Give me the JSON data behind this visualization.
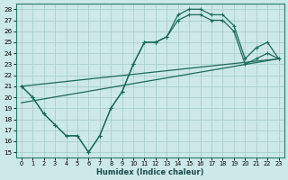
{
  "xlabel": "Humidex (Indice chaleur)",
  "bg_color": "#cce8e8",
  "grid_color": "#aacece",
  "line_color": "#1a6b5a",
  "xlim": [
    -0.5,
    23.5
  ],
  "ylim": [
    14.5,
    28.5
  ],
  "xticks": [
    0,
    1,
    2,
    3,
    4,
    5,
    6,
    7,
    8,
    9,
    10,
    11,
    12,
    13,
    14,
    15,
    16,
    17,
    18,
    19,
    20,
    21,
    22,
    23
  ],
  "yticks": [
    15,
    16,
    17,
    18,
    19,
    20,
    21,
    22,
    23,
    24,
    25,
    26,
    27,
    28
  ],
  "curve1_x": [
    0,
    1,
    2,
    3,
    4,
    5,
    6,
    7,
    8,
    9,
    10,
    11,
    12,
    13,
    14,
    15,
    16,
    17,
    18,
    19,
    20,
    21,
    22,
    23
  ],
  "curve1_y": [
    21.0,
    20.0,
    18.5,
    17.5,
    16.5,
    16.5,
    15.0,
    16.5,
    19.0,
    20.5,
    23.0,
    25.0,
    25.0,
    25.5,
    27.5,
    28.0,
    28.0,
    27.5,
    27.5,
    26.5,
    23.5,
    24.5,
    25.0,
    23.5
  ],
  "curve2_x": [
    0,
    1,
    2,
    3,
    4,
    5,
    6,
    7,
    8,
    9,
    10,
    11,
    12,
    13,
    14,
    15,
    16,
    17,
    18,
    19,
    20,
    21,
    22,
    23
  ],
  "curve2_y": [
    21.0,
    20.0,
    18.5,
    17.5,
    16.5,
    16.5,
    15.0,
    16.5,
    19.0,
    20.5,
    23.0,
    25.0,
    25.0,
    25.5,
    27.0,
    27.5,
    27.5,
    27.0,
    27.0,
    26.0,
    23.0,
    23.5,
    24.0,
    23.5
  ],
  "trend1_x": [
    0,
    23
  ],
  "trend1_y": [
    21.0,
    23.5
  ],
  "trend2_x": [
    0,
    23
  ],
  "trend2_y": [
    19.5,
    23.5
  ]
}
